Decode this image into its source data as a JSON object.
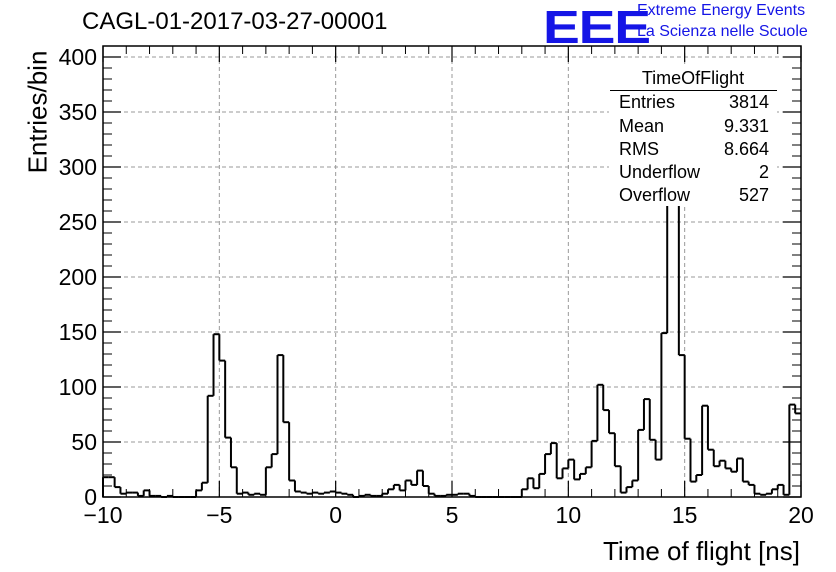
{
  "figure": {
    "run_title": "CAGL-01-2017-03-27-00001",
    "logo": {
      "mark": "EEE",
      "line1": "Extreme Energy Events",
      "line2": "La Scienza nelle Scuole",
      "color": "#1515e6"
    }
  },
  "stats_box": {
    "title": "TimeOfFlight",
    "rows": [
      {
        "key": "Entries",
        "value": "3814"
      },
      {
        "key": "Mean",
        "value": "9.331"
      },
      {
        "key": "RMS",
        "value": "8.664"
      },
      {
        "key": "Underflow",
        "value": "2"
      },
      {
        "key": "Overflow",
        "value": "527"
      }
    ]
  },
  "chart_data": {
    "type": "histogram",
    "title": "CAGL-01-2017-03-27-00001",
    "xlabel": "Time of flight [ns]",
    "ylabel": "Entries/bin",
    "xlim": [
      -10,
      20
    ],
    "ylim": [
      0,
      410
    ],
    "grid": true,
    "bin_width": 0.25,
    "xticks": [
      "−10",
      "−5",
      "0",
      "5",
      "10",
      "15",
      "20"
    ],
    "xtick_values": [
      -10,
      -5,
      0,
      5,
      10,
      15,
      20
    ],
    "yticks": [
      "0",
      "50",
      "100",
      "150",
      "200",
      "250",
      "300",
      "350",
      "400"
    ],
    "ytick_values": [
      0,
      50,
      100,
      150,
      200,
      250,
      300,
      350,
      400
    ],
    "counts": [
      18,
      18,
      9,
      3,
      4,
      4,
      1,
      6,
      1,
      1,
      0,
      1,
      0,
      0,
      0,
      0,
      6,
      13,
      92,
      148,
      124,
      54,
      27,
      3,
      4,
      2,
      3,
      2,
      27,
      39,
      129,
      68,
      15,
      5,
      4,
      3,
      4,
      3,
      4,
      5,
      4,
      3,
      2,
      0,
      1,
      2,
      1,
      1,
      3,
      7,
      11,
      6,
      15,
      11,
      24,
      10,
      3,
      1,
      1,
      2,
      2,
      3,
      3,
      1,
      0,
      0,
      0,
      0,
      0,
      0,
      0,
      0,
      7,
      17,
      8,
      21,
      39,
      49,
      17,
      26,
      34,
      16,
      21,
      27,
      51,
      102,
      79,
      58,
      28,
      4,
      9,
      15,
      61,
      89,
      52,
      34,
      149,
      390,
      355,
      129,
      53,
      14,
      20,
      83,
      43,
      28,
      33,
      26,
      23,
      35,
      14,
      11,
      3,
      2,
      3,
      7,
      11,
      2,
      84,
      76
    ],
    "series": [
      {
        "name": "TimeOfFlight"
      }
    ],
    "line_color": "#000000"
  }
}
